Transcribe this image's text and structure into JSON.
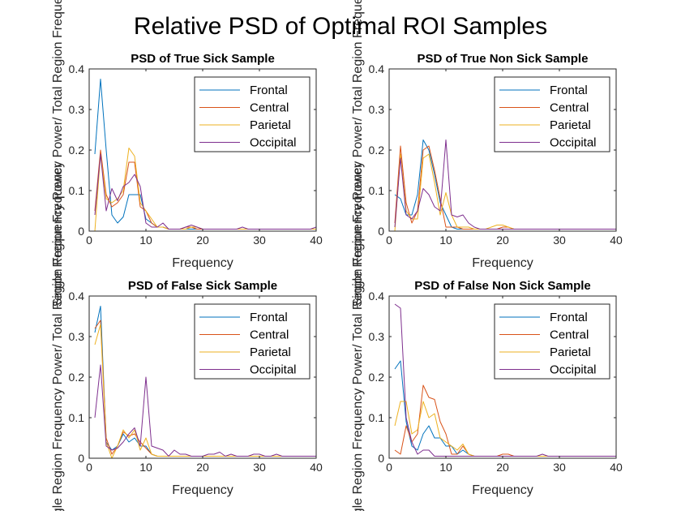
{
  "figure": {
    "suptitle": "Relative PSD of Optimal ROI Samples",
    "ylabel_text": "Single Region Frequency Power/ Total Region Frequency Power"
  },
  "colors": {
    "Frontal": "#0072BD",
    "Central": "#D95319",
    "Parietal": "#EDB120",
    "Occipital": "#7E2F8E"
  },
  "chart_data": [
    {
      "type": "line",
      "title": "PSD of True Sick Sample",
      "xlabel": "Frequency",
      "ylabel": "Single Region Frequency Power/ Total Region Frequency Power",
      "xlim": [
        0,
        40
      ],
      "ylim": [
        0,
        0.4
      ],
      "xticks": [
        0,
        10,
        20,
        30,
        40
      ],
      "yticks": [
        0,
        0.1,
        0.2,
        0.3,
        0.4
      ],
      "legend": "top-right",
      "x": [
        1,
        2,
        3,
        4,
        5,
        6,
        7,
        8,
        9,
        10,
        11,
        12,
        13,
        14,
        15,
        16,
        17,
        18,
        19,
        20,
        21,
        22,
        23,
        24,
        25,
        26,
        27,
        28,
        29,
        30,
        31,
        32,
        33,
        34,
        35,
        36,
        37,
        38,
        39,
        40
      ],
      "series": [
        {
          "name": "Frontal",
          "values": [
            0.19,
            0.375,
            0.2,
            0.04,
            0.02,
            0.035,
            0.09,
            0.09,
            0.09,
            0.03,
            0.02,
            0.01,
            0.01,
            0.005,
            0.005,
            0.005,
            0.005,
            0.005,
            0.005,
            0.005,
            0.005,
            0.005,
            0.005,
            0.005,
            0.005,
            0.005,
            0.005,
            0.005,
            0.005,
            0.005,
            0.005,
            0.005,
            0.005,
            0.005,
            0.005,
            0.005,
            0.005,
            0.005,
            0.005,
            0.005
          ]
        },
        {
          "name": "Central",
          "values": [
            0.05,
            0.2,
            0.09,
            0.06,
            0.07,
            0.09,
            0.17,
            0.17,
            0.06,
            0.05,
            0.02,
            0.01,
            0.01,
            0.005,
            0.005,
            0.005,
            0.01,
            0.01,
            0.005,
            0.005,
            0.005,
            0.005,
            0.005,
            0.005,
            0.005,
            0.005,
            0.005,
            0.005,
            0.005,
            0.005,
            0.005,
            0.005,
            0.005,
            0.005,
            0.005,
            0.005,
            0.005,
            0.005,
            0.005,
            0.005
          ]
        },
        {
          "name": "Parietal",
          "values": [
            0.0,
            0.19,
            0.08,
            0.07,
            0.08,
            0.1,
            0.205,
            0.185,
            0.07,
            0.05,
            0.03,
            0.01,
            0.01,
            0.005,
            0.005,
            0.005,
            0.005,
            0.01,
            0.01,
            0.005,
            0.005,
            0.005,
            0.005,
            0.005,
            0.005,
            0.005,
            0.005,
            0.005,
            0.005,
            0.005,
            0.005,
            0.005,
            0.005,
            0.005,
            0.005,
            0.005,
            0.005,
            0.005,
            0.005,
            0.005
          ]
        },
        {
          "name": "Occipital",
          "values": [
            0.04,
            0.19,
            0.05,
            0.105,
            0.075,
            0.11,
            0.12,
            0.14,
            0.11,
            0.02,
            0.01,
            0.01,
            0.02,
            0.005,
            0.005,
            0.005,
            0.01,
            0.015,
            0.01,
            0.005,
            0.005,
            0.005,
            0.005,
            0.005,
            0.005,
            0.005,
            0.01,
            0.005,
            0.005,
            0.005,
            0.005,
            0.005,
            0.005,
            0.005,
            0.005,
            0.005,
            0.005,
            0.005,
            0.005,
            0.01
          ]
        }
      ]
    },
    {
      "type": "line",
      "title": "PSD of True Non Sick Sample",
      "xlabel": "Frequency",
      "ylabel": "Single Region Frequency Power/ Total Region Frequency Power",
      "xlim": [
        0,
        40
      ],
      "ylim": [
        0,
        0.4
      ],
      "xticks": [
        0,
        10,
        20,
        30,
        40
      ],
      "yticks": [
        0,
        0.1,
        0.2,
        0.3,
        0.4
      ],
      "legend": "top-right",
      "x": [
        1,
        2,
        3,
        4,
        5,
        6,
        7,
        8,
        9,
        10,
        11,
        12,
        13,
        14,
        15,
        16,
        17,
        18,
        19,
        20,
        21,
        22,
        23,
        24,
        25,
        26,
        27,
        28,
        29,
        30,
        31,
        32,
        33,
        34,
        35,
        36,
        37,
        38,
        39,
        40
      ],
      "series": [
        {
          "name": "Frontal",
          "values": [
            0.09,
            0.08,
            0.04,
            0.04,
            0.09,
            0.225,
            0.2,
            0.14,
            0.07,
            0.04,
            0.01,
            0.005,
            0.005,
            0.005,
            0.005,
            0.005,
            0.005,
            0.005,
            0.005,
            0.005,
            0.005,
            0.005,
            0.005,
            0.005,
            0.005,
            0.005,
            0.005,
            0.005,
            0.005,
            0.005,
            0.005,
            0.005,
            0.005,
            0.005,
            0.005,
            0.005,
            0.005,
            0.005,
            0.005,
            0.005
          ]
        },
        {
          "name": "Central",
          "values": [
            0.02,
            0.21,
            0.07,
            0.02,
            0.05,
            0.2,
            0.21,
            0.15,
            0.08,
            0.01,
            0.01,
            0.01,
            0.005,
            0.005,
            0.005,
            0.005,
            0.005,
            0.005,
            0.005,
            0.01,
            0.01,
            0.005,
            0.005,
            0.005,
            0.005,
            0.005,
            0.005,
            0.005,
            0.005,
            0.005,
            0.005,
            0.005,
            0.005,
            0.005,
            0.005,
            0.005,
            0.005,
            0.005,
            0.005,
            0.005
          ]
        },
        {
          "name": "Parietal",
          "values": [
            0.0,
            0.19,
            0.05,
            0.03,
            0.03,
            0.18,
            0.19,
            0.12,
            0.04,
            0.095,
            0.04,
            0.01,
            0.01,
            0.01,
            0.005,
            0.005,
            0.005,
            0.01,
            0.015,
            0.015,
            0.01,
            0.005,
            0.005,
            0.005,
            0.005,
            0.005,
            0.005,
            0.005,
            0.005,
            0.005,
            0.005,
            0.005,
            0.005,
            0.005,
            0.005,
            0.005,
            0.005,
            0.005,
            0.005,
            0.005
          ]
        },
        {
          "name": "Occipital",
          "values": [
            0.01,
            0.18,
            0.04,
            0.03,
            0.05,
            0.105,
            0.09,
            0.06,
            0.05,
            0.225,
            0.04,
            0.035,
            0.04,
            0.02,
            0.01,
            0.005,
            0.005,
            0.005,
            0.005,
            0.005,
            0.005,
            0.005,
            0.005,
            0.005,
            0.005,
            0.005,
            0.005,
            0.005,
            0.005,
            0.005,
            0.005,
            0.005,
            0.005,
            0.005,
            0.005,
            0.005,
            0.005,
            0.005,
            0.005,
            0.005
          ]
        }
      ]
    },
    {
      "type": "line",
      "title": "PSD of False Sick Sample",
      "xlabel": "Frequency",
      "ylabel": "Single Region Frequency Power/ Total Region Frequency Power",
      "xlim": [
        0,
        40
      ],
      "ylim": [
        0,
        0.4
      ],
      "xticks": [
        0,
        10,
        20,
        30,
        40
      ],
      "yticks": [
        0,
        0.1,
        0.2,
        0.3,
        0.4
      ],
      "legend": "top-right",
      "x": [
        1,
        2,
        3,
        4,
        5,
        6,
        7,
        8,
        9,
        10,
        11,
        12,
        13,
        14,
        15,
        16,
        17,
        18,
        19,
        20,
        21,
        22,
        23,
        24,
        25,
        26,
        27,
        28,
        29,
        30,
        31,
        32,
        33,
        34,
        35,
        36,
        37,
        38,
        39,
        40
      ],
      "series": [
        {
          "name": "Frontal",
          "values": [
            0.31,
            0.375,
            0.04,
            0.02,
            0.03,
            0.06,
            0.04,
            0.05,
            0.03,
            0.03,
            0.01,
            0.005,
            0.005,
            0.005,
            0.005,
            0.005,
            0.005,
            0.005,
            0.005,
            0.005,
            0.005,
            0.005,
            0.005,
            0.005,
            0.005,
            0.005,
            0.005,
            0.005,
            0.005,
            0.005,
            0.005,
            0.005,
            0.005,
            0.005,
            0.005,
            0.005,
            0.005,
            0.005,
            0.005,
            0.005
          ]
        },
        {
          "name": "Central",
          "values": [
            0.32,
            0.34,
            0.05,
            0.01,
            0.03,
            0.065,
            0.055,
            0.06,
            0.04,
            0.025,
            0.01,
            0.005,
            0.005,
            0.005,
            0.005,
            0.005,
            0.005,
            0.005,
            0.005,
            0.005,
            0.005,
            0.005,
            0.005,
            0.005,
            0.005,
            0.005,
            0.005,
            0.005,
            0.005,
            0.005,
            0.005,
            0.005,
            0.005,
            0.005,
            0.005,
            0.005,
            0.005,
            0.005,
            0.005,
            0.005
          ]
        },
        {
          "name": "Parietal",
          "values": [
            0.28,
            0.33,
            0.04,
            0.0,
            0.03,
            0.07,
            0.05,
            0.07,
            0.02,
            0.05,
            0.01,
            0.005,
            0.005,
            0.005,
            0.005,
            0.005,
            0.005,
            0.005,
            0.005,
            0.005,
            0.005,
            0.005,
            0.005,
            0.005,
            0.005,
            0.005,
            0.005,
            0.005,
            0.005,
            0.005,
            0.005,
            0.005,
            0.005,
            0.005,
            0.005,
            0.005,
            0.005,
            0.005,
            0.005,
            0.005
          ]
        },
        {
          "name": "Occipital",
          "values": [
            0.1,
            0.23,
            0.03,
            0.02,
            0.025,
            0.04,
            0.06,
            0.075,
            0.03,
            0.2,
            0.03,
            0.025,
            0.02,
            0.005,
            0.02,
            0.01,
            0.01,
            0.005,
            0.005,
            0.005,
            0.01,
            0.01,
            0.015,
            0.005,
            0.01,
            0.005,
            0.005,
            0.005,
            0.01,
            0.01,
            0.005,
            0.005,
            0.01,
            0.005,
            0.005,
            0.005,
            0.005,
            0.005,
            0.005,
            0.005
          ]
        }
      ]
    },
    {
      "type": "line",
      "title": "PSD of False Non Sick Sample",
      "xlabel": "Frequency",
      "ylabel": "Single Region Frequency Power/ Total Region Frequency Power",
      "xlim": [
        0,
        40
      ],
      "ylim": [
        0,
        0.4
      ],
      "xticks": [
        0,
        10,
        20,
        30,
        40
      ],
      "yticks": [
        0,
        0.1,
        0.2,
        0.3,
        0.4
      ],
      "legend": "top-right",
      "x": [
        1,
        2,
        3,
        4,
        5,
        6,
        7,
        8,
        9,
        10,
        11,
        12,
        13,
        14,
        15,
        16,
        17,
        18,
        19,
        20,
        21,
        22,
        23,
        24,
        25,
        26,
        27,
        28,
        29,
        30,
        31,
        32,
        33,
        34,
        35,
        36,
        37,
        38,
        39,
        40
      ],
      "series": [
        {
          "name": "Frontal",
          "values": [
            0.22,
            0.24,
            0.09,
            0.03,
            0.02,
            0.06,
            0.08,
            0.05,
            0.05,
            0.03,
            0.03,
            0.01,
            0.02,
            0.01,
            0.005,
            0.005,
            0.005,
            0.005,
            0.005,
            0.005,
            0.005,
            0.005,
            0.005,
            0.005,
            0.005,
            0.005,
            0.005,
            0.005,
            0.005,
            0.005,
            0.005,
            0.005,
            0.005,
            0.005,
            0.005,
            0.005,
            0.005,
            0.005,
            0.005,
            0.005
          ]
        },
        {
          "name": "Central",
          "values": [
            0.02,
            0.01,
            0.08,
            0.04,
            0.06,
            0.18,
            0.15,
            0.145,
            0.09,
            0.06,
            0.01,
            0.01,
            0.03,
            0.01,
            0.005,
            0.005,
            0.005,
            0.005,
            0.005,
            0.01,
            0.01,
            0.005,
            0.005,
            0.005,
            0.005,
            0.005,
            0.005,
            0.005,
            0.005,
            0.005,
            0.005,
            0.005,
            0.005,
            0.005,
            0.005,
            0.005,
            0.005,
            0.005,
            0.005,
            0.005
          ]
        },
        {
          "name": "Parietal",
          "values": [
            0.08,
            0.14,
            0.14,
            0.06,
            0.07,
            0.14,
            0.1,
            0.11,
            0.05,
            0.04,
            0.03,
            0.02,
            0.035,
            0.01,
            0.005,
            0.005,
            0.005,
            0.005,
            0.005,
            0.005,
            0.005,
            0.005,
            0.005,
            0.005,
            0.005,
            0.005,
            0.005,
            0.005,
            0.005,
            0.005,
            0.005,
            0.005,
            0.005,
            0.005,
            0.005,
            0.005,
            0.005,
            0.005,
            0.005,
            0.005
          ]
        },
        {
          "name": "Occipital",
          "values": [
            0.38,
            0.37,
            0.1,
            0.04,
            0.01,
            0.02,
            0.02,
            0.005,
            0.005,
            0.005,
            0.005,
            0.005,
            0.005,
            0.005,
            0.005,
            0.005,
            0.005,
            0.005,
            0.005,
            0.005,
            0.005,
            0.005,
            0.005,
            0.005,
            0.005,
            0.005,
            0.01,
            0.005,
            0.005,
            0.005,
            0.005,
            0.005,
            0.005,
            0.005,
            0.005,
            0.005,
            0.005,
            0.005,
            0.005,
            0.005
          ]
        }
      ]
    }
  ]
}
